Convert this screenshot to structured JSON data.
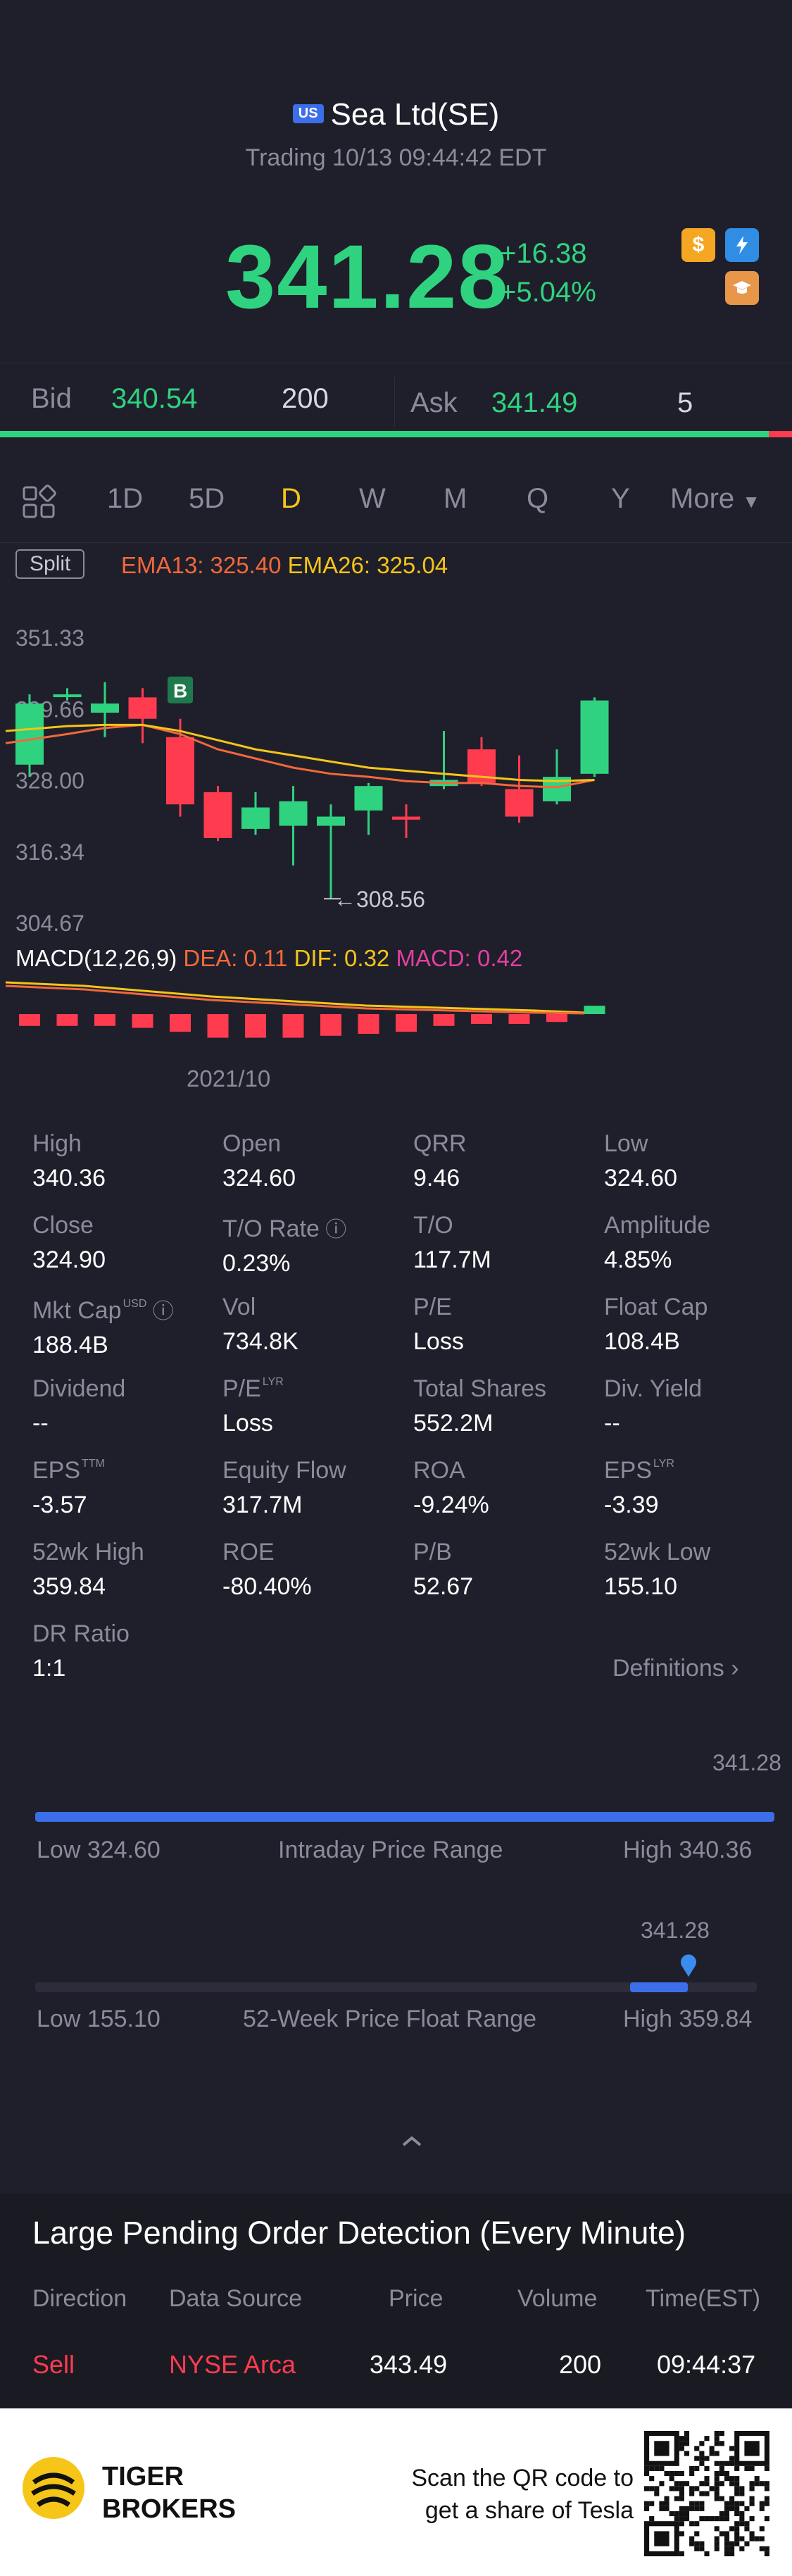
{
  "header": {
    "exchange_flag": "US",
    "title": "Sea Ltd(SE)",
    "status": "Trading 10/13 09:44:42 EDT",
    "price": "341.28",
    "change": "+16.38",
    "change_pct": "+5.04%"
  },
  "quote": {
    "bid_label": "Bid",
    "bid_price": "340.54",
    "bid_size": "200",
    "ask_label": "Ask",
    "ask_price": "341.49",
    "ask_size": "5"
  },
  "timeframes": {
    "items": [
      "1D",
      "5D",
      "D",
      "W",
      "M",
      "Q",
      "Y"
    ],
    "active": "D",
    "more_label": "More"
  },
  "indicators": {
    "split_label": "Split",
    "ema13": "EMA13: 325.40",
    "ema26": "EMA26: 325.04",
    "low_marker": "308.56",
    "buy_marker": "B",
    "macd_title": "MACD(12,26,9)",
    "dea": "DEA: 0.11",
    "dif": "DIF: 0.32",
    "macd": "MACD: 0.42",
    "date_label": "2021/10"
  },
  "chart_data": {
    "type": "candlestick",
    "y_ticks": [
      "351.33",
      "339.66",
      "328.00",
      "316.34",
      "304.67"
    ],
    "ylim": [
      304.67,
      351.33
    ],
    "x_label": "2021/10",
    "candles": [
      {
        "o": 330.5,
        "h": 342.0,
        "l": 328.5,
        "c": 340.5
      },
      {
        "o": 342.0,
        "h": 343.0,
        "l": 341.0,
        "c": 342.0
      },
      {
        "o": 339.0,
        "h": 344.0,
        "l": 335.0,
        "c": 340.5
      },
      {
        "o": 341.5,
        "h": 343.0,
        "l": 334.0,
        "c": 338.0
      },
      {
        "o": 335.0,
        "h": 338.0,
        "l": 322.0,
        "c": 324.0
      },
      {
        "o": 326.0,
        "h": 327.0,
        "l": 318.0,
        "c": 318.5
      },
      {
        "o": 320.0,
        "h": 326.0,
        "l": 319.0,
        "c": 323.5
      },
      {
        "o": 320.5,
        "h": 327.0,
        "l": 314.0,
        "c": 324.5
      },
      {
        "o": 320.5,
        "h": 324.0,
        "l": 308.56,
        "c": 322.0
      },
      {
        "o": 323.0,
        "h": 327.5,
        "l": 319.0,
        "c": 327.0
      },
      {
        "o": 322.0,
        "h": 324.0,
        "l": 318.5,
        "c": 321.5
      },
      {
        "o": 327.0,
        "h": 336.0,
        "l": 326.5,
        "c": 328.0
      },
      {
        "o": 333.0,
        "h": 335.0,
        "l": 327.0,
        "c": 327.5
      },
      {
        "o": 326.5,
        "h": 332.0,
        "l": 321.0,
        "c": 322.0
      },
      {
        "o": 324.5,
        "h": 333.0,
        "l": 324.0,
        "c": 328.5
      },
      {
        "o": 329.0,
        "h": 341.5,
        "l": 328.5,
        "c": 341.0
      }
    ],
    "ema13": [
      334.0,
      335.5,
      336.5,
      337.0,
      335.5,
      333.0,
      331.5,
      330.0,
      329.0,
      328.5,
      327.8,
      327.5,
      327.5,
      327.0,
      326.8,
      328.0
    ],
    "ema26": [
      336.0,
      336.8,
      337.0,
      337.0,
      336.0,
      334.5,
      333.0,
      332.0,
      331.0,
      330.0,
      329.5,
      329.0,
      328.5,
      328.0,
      327.8,
      328.0
    ],
    "macd_hist": [
      -0.6,
      -0.6,
      -0.6,
      -0.7,
      -0.9,
      -1.2,
      -1.2,
      -1.2,
      -1.1,
      -1.0,
      -0.9,
      -0.6,
      -0.5,
      -0.5,
      -0.4,
      0.42
    ],
    "colors": {
      "up": "#2fd37f",
      "down": "#ff3b4f",
      "ema13": "#f2683a",
      "ema26": "#f5c518"
    }
  },
  "stats": [
    [
      {
        "label": "High",
        "value": "340.36"
      },
      {
        "label": "Open",
        "value": "324.60"
      },
      {
        "label": "QRR",
        "value": "9.46"
      },
      {
        "label": "Low",
        "value": "324.60"
      }
    ],
    [
      {
        "label": "Close",
        "value": "324.90"
      },
      {
        "label": "T/O Rate",
        "value": "0.23%"
      },
      {
        "label": "T/O",
        "value": "117.7M"
      },
      {
        "label": "Amplitude",
        "value": "4.85%"
      }
    ],
    [
      {
        "label": "Mkt Cap",
        "value": "188.4B",
        "sup": "USD"
      },
      {
        "label": "Vol",
        "value": "734.8K"
      },
      {
        "label": "P/E",
        "value": "Loss"
      },
      {
        "label": "Float Cap",
        "value": "108.4B"
      }
    ],
    [
      {
        "label": "Dividend",
        "value": "--"
      },
      {
        "label": "P/E",
        "value": "Loss",
        "sup": "LYR"
      },
      {
        "label": "Total Shares",
        "value": "552.2M"
      },
      {
        "label": "Div. Yield",
        "value": "--"
      }
    ],
    [
      {
        "label": "EPS",
        "value": "-3.57",
        "sup": "TTM"
      },
      {
        "label": "Equity Flow",
        "value": "317.7M"
      },
      {
        "label": "ROA",
        "value": "-9.24%"
      },
      {
        "label": "EPS",
        "value": "-3.39",
        "sup": "LYR"
      }
    ],
    [
      {
        "label": "52wk High",
        "value": "359.84"
      },
      {
        "label": "ROE",
        "value": "-80.40%"
      },
      {
        "label": "P/B",
        "value": "52.67"
      },
      {
        "label": "52wk Low",
        "value": "155.10"
      }
    ],
    [
      {
        "label": "DR Ratio",
        "value": "1:1"
      }
    ]
  ],
  "definitions_label": "Definitions",
  "intraday": {
    "current": "341.28",
    "low": "Low 324.60",
    "title": "Intraday Price Range",
    "high": "High 340.36",
    "position": 1.0
  },
  "week52": {
    "current": "341.28",
    "low": "Low 155.10",
    "title": "52-Week Price Float Range",
    "high": "High 359.84",
    "position": 0.907,
    "fill_start": 0.83
  },
  "pending": {
    "title": "Large Pending Order Detection (Every Minute)",
    "headers": [
      "Direction",
      "Data Source",
      "Price",
      "Volume",
      "Time(EST)"
    ],
    "row": [
      "Sell",
      "NYSE Arca",
      "343.49",
      "200",
      "09:44:37"
    ]
  },
  "footer": {
    "brand_line1": "TIGER",
    "brand_line2": "BROKERS",
    "cta_line1": "Scan the QR code to",
    "cta_line2": "get a share of Tesla"
  }
}
